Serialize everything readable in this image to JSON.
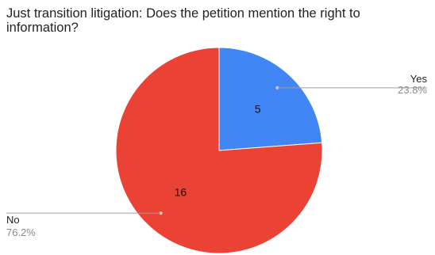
{
  "chart_data": {
    "type": "pie",
    "title": "Just transition litigation: Does the petition mention the right to information?",
    "slices": [
      {
        "label": "Yes",
        "value": 5,
        "percent": "23.8%",
        "color": "#4285f4"
      },
      {
        "label": "No",
        "value": 16,
        "percent": "76.2%",
        "color": "#ea4335"
      }
    ],
    "start_angle": "12 o'clock",
    "direction": "clockwise"
  }
}
